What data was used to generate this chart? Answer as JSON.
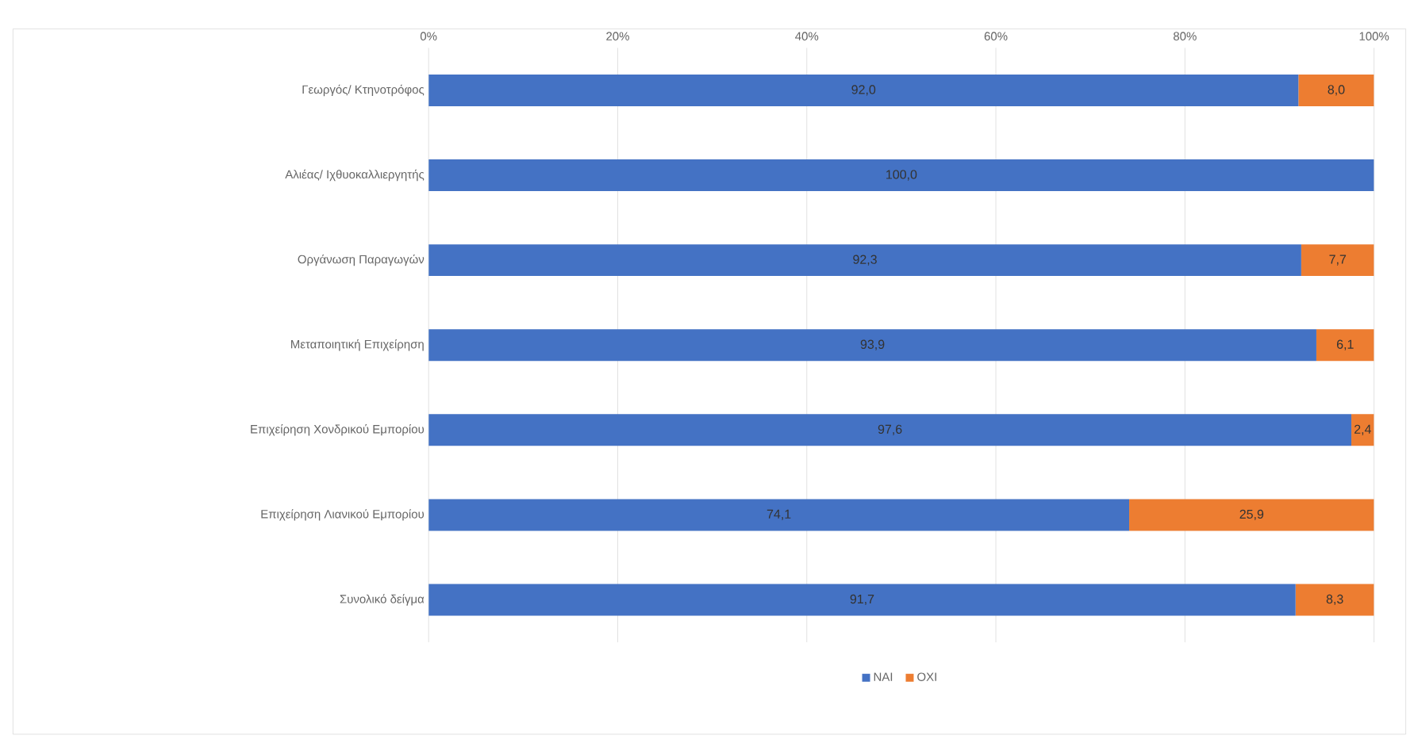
{
  "chart_data": {
    "type": "bar",
    "orientation": "horizontal",
    "stacked": true,
    "categories": [
      "Γεωργός/ Κτηνοτρόφος",
      "Αλιέας/ Ιχθυοκαλλιεργητής",
      "Οργάνωση Παραγωγών",
      "Μεταποιητική Επιχείρηση",
      "Επιχείρηση Χονδρικού Εμπορίου",
      "Επιχείρηση Λιανικού Εμπορίου",
      "Συνολικό δείγμα"
    ],
    "series": [
      {
        "name": "ΝΑΙ",
        "color": "#4472c4",
        "values": [
          92.0,
          100.0,
          92.3,
          93.9,
          97.6,
          74.1,
          91.7
        ],
        "value_labels": [
          "92,0",
          "100,0",
          "92,3",
          "93,9",
          "97,6",
          "74,1",
          "91,7"
        ]
      },
      {
        "name": "ΟΧΙ",
        "color": "#ed7d31",
        "values": [
          8.0,
          0,
          7.7,
          6.1,
          2.4,
          25.9,
          8.3
        ],
        "value_labels": [
          "8,0",
          null,
          "7,7",
          "6,1",
          "2,4",
          "25,9",
          "8,3"
        ]
      }
    ],
    "xlim": [
      0,
      100
    ],
    "xticks": [
      {
        "value": 0,
        "label": "0%"
      },
      {
        "value": 20,
        "label": "20%"
      },
      {
        "value": 40,
        "label": "40%"
      },
      {
        "value": 60,
        "label": "60%"
      },
      {
        "value": 80,
        "label": "80%"
      },
      {
        "value": 100,
        "label": "100%"
      }
    ],
    "grid": "x",
    "legend": "bottom"
  }
}
